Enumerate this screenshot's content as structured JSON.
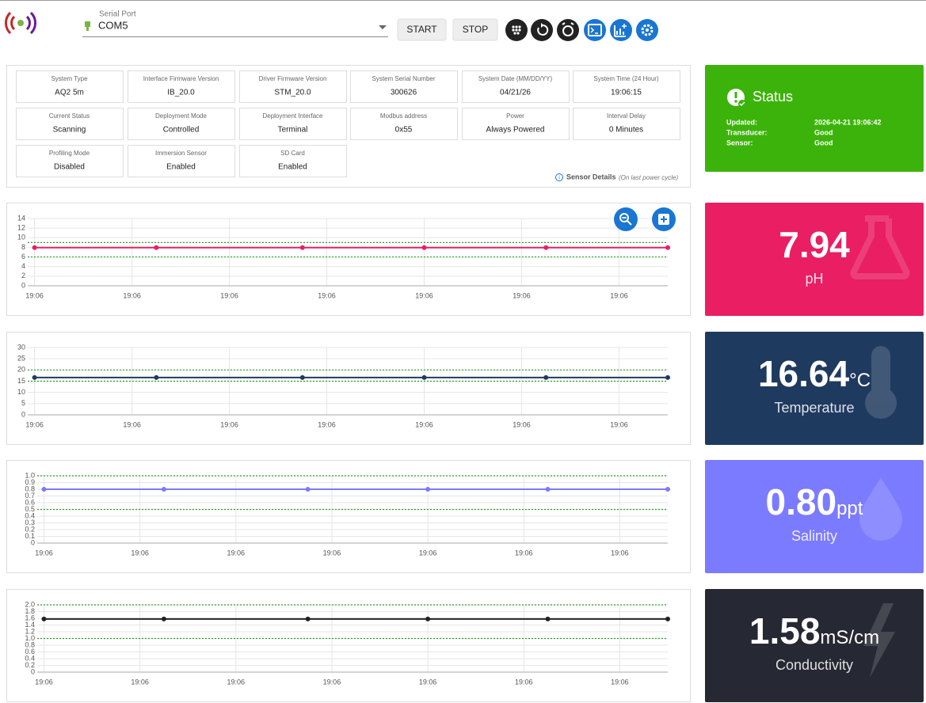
{
  "header": {
    "serial_port_label": "Serial Port",
    "serial_port": "COM5",
    "buttons": [
      "START",
      "STOP"
    ]
  },
  "info": [
    {
      "label": "System Type",
      "value": "AQ2 5m"
    },
    {
      "label": "Interface Firmware Version",
      "value": "IB_20.0"
    },
    {
      "label": "Driver Firmware Version",
      "value": "STM_20.0"
    },
    {
      "label": "System Serial Number",
      "value": "300626"
    },
    {
      "label": "System Date (MM/DD/YY)",
      "value": "04/21/26"
    },
    {
      "label": "System Time (24 Hour)",
      "value": "19:06:15"
    },
    {
      "label": "Current Status",
      "value": "Scanning"
    },
    {
      "label": "Deployment Mode",
      "value": "Controlled"
    },
    {
      "label": "Deployment Interface",
      "value": "Terminal"
    },
    {
      "label": "Modbus address",
      "value": "0x55"
    },
    {
      "label": "Power",
      "value": "Always Powered"
    },
    {
      "label": "Interval Delay",
      "value": "0 Minutes"
    },
    {
      "label": "Profiling Mode",
      "value": "Disabled"
    },
    {
      "label": "Immersion Sensor",
      "value": "Enabled"
    },
    {
      "label": "SD Card",
      "value": "Enabled"
    }
  ],
  "sensor_details": {
    "label": "Sensor Details",
    "note": "(On last power cycle)"
  },
  "status": {
    "title": "Status",
    "color": "#3cb30a",
    "rows": [
      {
        "label": "Updated:",
        "value": "2026-04-21 19:06:42"
      },
      {
        "label": "Transducer:",
        "value": "Good"
      },
      {
        "label": "Sensor:",
        "value": "Good"
      }
    ]
  },
  "chart_data": [
    {
      "type": "line",
      "xlim": [
        -0.07,
        6.5
      ],
      "xticks": [
        {
          "value": 0,
          "label": "19:06"
        },
        {
          "value": 1,
          "label": "19:06"
        },
        {
          "value": 2,
          "label": "19:06"
        },
        {
          "value": 3,
          "label": "19:06"
        },
        {
          "value": 4,
          "label": "19:06"
        },
        {
          "value": 5,
          "label": "19:06"
        },
        {
          "value": 6,
          "label": "19:06"
        }
      ],
      "ylim": [
        0,
        14
      ],
      "yticks": [
        0,
        2,
        4,
        6,
        8,
        10,
        12,
        14
      ],
      "grid": true,
      "x": [
        0,
        1.25,
        2.75,
        4,
        5.25,
        6.5
      ],
      "series": [
        {
          "color": "#e91e63",
          "values": [
            7.94,
            7.94,
            7.94,
            7.94,
            7.94,
            7.94
          ]
        }
      ],
      "thresholds": [
        9,
        6
      ],
      "threshold_color": "#2e9e2e"
    },
    {
      "type": "line",
      "xlim": [
        -0.07,
        6.5
      ],
      "xticks": [
        {
          "value": 0,
          "label": "19:06"
        },
        {
          "value": 1,
          "label": "19:06"
        },
        {
          "value": 2,
          "label": "19:06"
        },
        {
          "value": 3,
          "label": "19:06"
        },
        {
          "value": 4,
          "label": "19:06"
        },
        {
          "value": 5,
          "label": "19:06"
        },
        {
          "value": 6,
          "label": "19:06"
        }
      ],
      "ylim": [
        0,
        30
      ],
      "yticks": [
        0,
        5,
        10,
        15,
        20,
        25,
        30
      ],
      "grid": true,
      "x": [
        0,
        1.25,
        2.75,
        4,
        5.25,
        6.5
      ],
      "series": [
        {
          "color": "#1f3a60",
          "values": [
            16.64,
            16.64,
            16.64,
            16.64,
            16.64,
            16.64
          ]
        }
      ],
      "thresholds": [
        20,
        15
      ],
      "threshold_color": "#2e9e2e"
    },
    {
      "type": "line",
      "xlim": [
        -0.07,
        6.5
      ],
      "xticks": [
        {
          "value": 0,
          "label": "19:06"
        },
        {
          "value": 1,
          "label": "19:06"
        },
        {
          "value": 2,
          "label": "19:06"
        },
        {
          "value": 3,
          "label": "19:06"
        },
        {
          "value": 4,
          "label": "19:06"
        },
        {
          "value": 5,
          "label": "19:06"
        },
        {
          "value": 6,
          "label": "19:06"
        }
      ],
      "ylim": [
        0,
        1.0
      ],
      "yticks": [
        0,
        0.1,
        0.2,
        0.3,
        0.4,
        0.5,
        0.6,
        0.7,
        0.8,
        0.9,
        {
          "value": 1.0,
          "label": "1.0"
        }
      ],
      "grid": true,
      "x": [
        0,
        1.25,
        2.75,
        4,
        5.25,
        6.5
      ],
      "series": [
        {
          "color": "#7b7bff",
          "values": [
            0.8,
            0.8,
            0.8,
            0.8,
            0.8,
            0.8
          ]
        }
      ],
      "thresholds": [
        1.0,
        0.5
      ],
      "threshold_color": "#2e9e2e"
    },
    {
      "type": "line",
      "xlim": [
        -0.07,
        6.5
      ],
      "xticks": [
        {
          "value": 0,
          "label": "19:06"
        },
        {
          "value": 1,
          "label": "19:06"
        },
        {
          "value": 2,
          "label": "19:06"
        },
        {
          "value": 3,
          "label": "19:06"
        },
        {
          "value": 4,
          "label": "19:06"
        },
        {
          "value": 5,
          "label": "19:06"
        },
        {
          "value": 6,
          "label": "19:06"
        }
      ],
      "ylim": [
        0,
        2.0
      ],
      "yticks": [
        0,
        0.2,
        0.4,
        0.6,
        0.8,
        {
          "value": 1.0,
          "label": "1.0"
        },
        1.2,
        1.4,
        1.6,
        1.8,
        {
          "value": 2.0,
          "label": "2.0"
        }
      ],
      "grid": true,
      "x": [
        0,
        1.25,
        2.75,
        4,
        5.25,
        6.5
      ],
      "series": [
        {
          "color": "#222222",
          "values": [
            1.58,
            1.58,
            1.58,
            1.58,
            1.58,
            1.58
          ]
        }
      ],
      "thresholds": [
        2.0,
        1.0
      ],
      "threshold_color": "#2e9e2e"
    }
  ],
  "cards": [
    {
      "value": "7.94",
      "name": "pH",
      "color": "#e91e63"
    },
    {
      "value": "16.64",
      "unit": "°C",
      "name": "Temperature",
      "color": "#1f3a5f"
    },
    {
      "value": "0.80",
      "unit": "ppt",
      "name": "Salinity",
      "color": "#7b7bff"
    },
    {
      "value": "1.58",
      "unit": "mS/cm",
      "name": "Conductivity",
      "color": "#262833"
    }
  ]
}
